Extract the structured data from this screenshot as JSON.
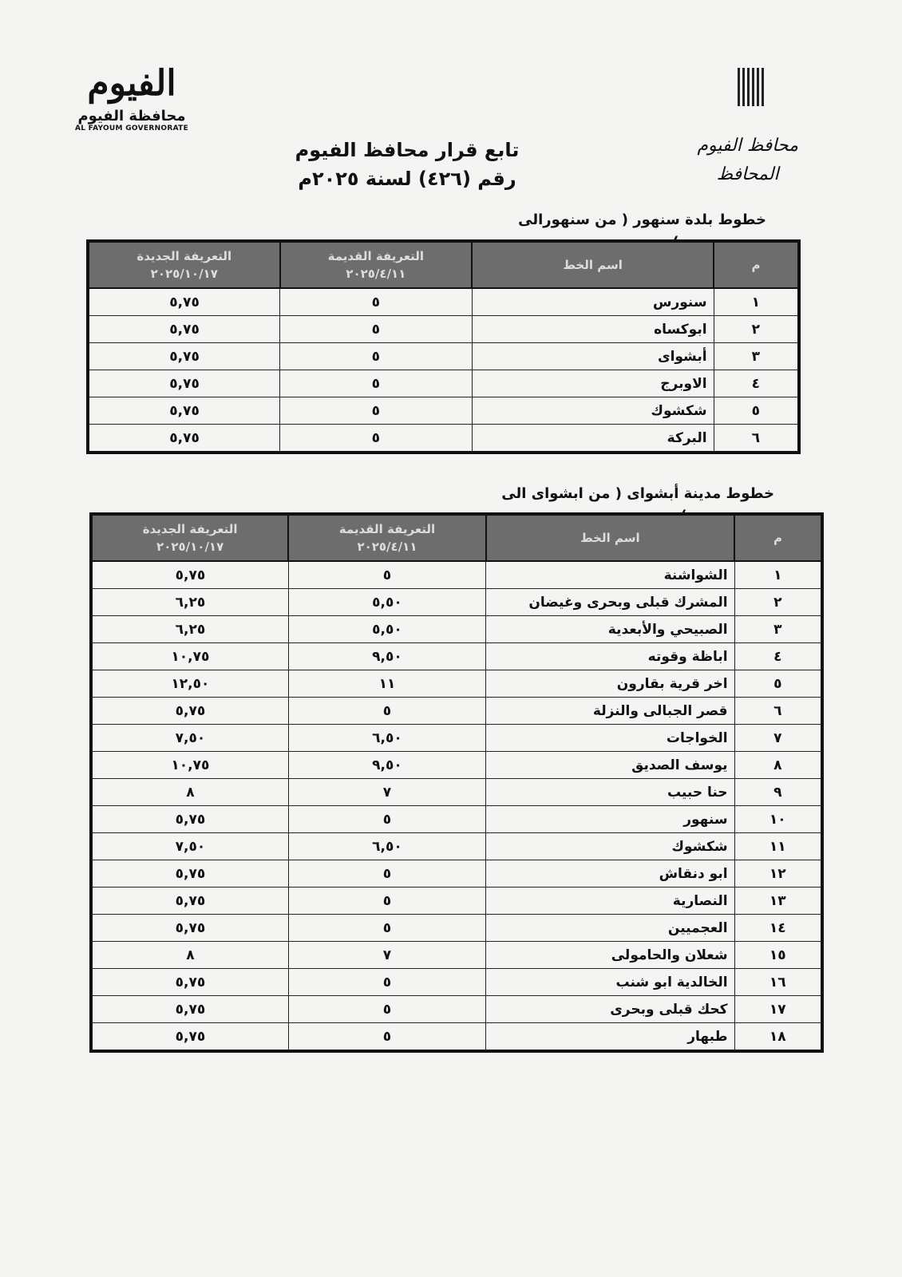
{
  "header": {
    "logo_mark": "الفيوم",
    "logo_ar": "محافظة الفيوم",
    "logo_en": "AL FAYOUM GOVERNORATE",
    "gov_line1": "محافظ الفيوم",
    "gov_line2": "المحافظ",
    "title_line1": "تابع قرار محافظ الفيوم",
    "title_line2": "رقم (٤٢٦) لسنة ٢٠٢٥م"
  },
  "columns": {
    "num": "م",
    "name": "اسم الخط",
    "old": "التعريفة القديمة",
    "old_date": "٢٠٢٥/٤/١١",
    "new": "التعريفة الجديدة",
    "new_date": "٢٠٢٥/١٠/١٧"
  },
  "tables": [
    {
      "title": "خطوط بلدة سنهور ( من سنهورالى ................)",
      "rows": [
        {
          "n": "١",
          "name": "سنورس",
          "old": "٥",
          "new": "٥,٧٥"
        },
        {
          "n": "٢",
          "name": "ابوكساه",
          "old": "٥",
          "new": "٥,٧٥"
        },
        {
          "n": "٣",
          "name": "أبشواى",
          "old": "٥",
          "new": "٥,٧٥"
        },
        {
          "n": "٤",
          "name": "الاوبرج",
          "old": "٥",
          "new": "٥,٧٥"
        },
        {
          "n": "٥",
          "name": "شكشوك",
          "old": "٥",
          "new": "٥,٧٥"
        },
        {
          "n": "٦",
          "name": "البركة",
          "old": "٥",
          "new": "٥,٧٥"
        }
      ]
    },
    {
      "title": "خطوط مدينة أبشواى ( من ابشواى الى ................)",
      "rows": [
        {
          "n": "١",
          "name": "الشواشنة",
          "old": "٥",
          "new": "٥,٧٥"
        },
        {
          "n": "٢",
          "name": "المشرك قبلى وبحرى وغيضان",
          "old": "٥,٥٠",
          "new": "٦,٢٥"
        },
        {
          "n": "٣",
          "name": "الصبيحي والأبعدية",
          "old": "٥,٥٠",
          "new": "٦,٢٥"
        },
        {
          "n": "٤",
          "name": "اباظة وقوته",
          "old": "٩,٥٠",
          "new": "١٠,٧٥"
        },
        {
          "n": "٥",
          "name": "اخر قرية بقارون",
          "old": "١١",
          "new": "١٢,٥٠"
        },
        {
          "n": "٦",
          "name": "قصر الجبالى والنزلة",
          "old": "٥",
          "new": "٥,٧٥"
        },
        {
          "n": "٧",
          "name": "الخواجات",
          "old": "٦,٥٠",
          "new": "٧,٥٠"
        },
        {
          "n": "٨",
          "name": "يوسف الصديق",
          "old": "٩,٥٠",
          "new": "١٠,٧٥"
        },
        {
          "n": "٩",
          "name": "حنا حبيب",
          "old": "٧",
          "new": "٨"
        },
        {
          "n": "١٠",
          "name": "سنهور",
          "old": "٥",
          "new": "٥,٧٥"
        },
        {
          "n": "١١",
          "name": "شكشوك",
          "old": "٦,٥٠",
          "new": "٧,٥٠"
        },
        {
          "n": "١٢",
          "name": "ابو دنقاش",
          "old": "٥",
          "new": "٥,٧٥"
        },
        {
          "n": "١٣",
          "name": "النصارية",
          "old": "٥",
          "new": "٥,٧٥"
        },
        {
          "n": "١٤",
          "name": "العجميين",
          "old": "٥",
          "new": "٥,٧٥"
        },
        {
          "n": "١٥",
          "name": "شعلان والحامولى",
          "old": "٧",
          "new": "٨"
        },
        {
          "n": "١٦",
          "name": "الخالدية ابو شنب",
          "old": "٥",
          "new": "٥,٧٥"
        },
        {
          "n": "١٧",
          "name": "كحك قبلى وبحرى",
          "old": "٥",
          "new": "٥,٧٥"
        },
        {
          "n": "١٨",
          "name": "طبهار",
          "old": "٥",
          "new": "٥,٧٥"
        }
      ]
    }
  ]
}
